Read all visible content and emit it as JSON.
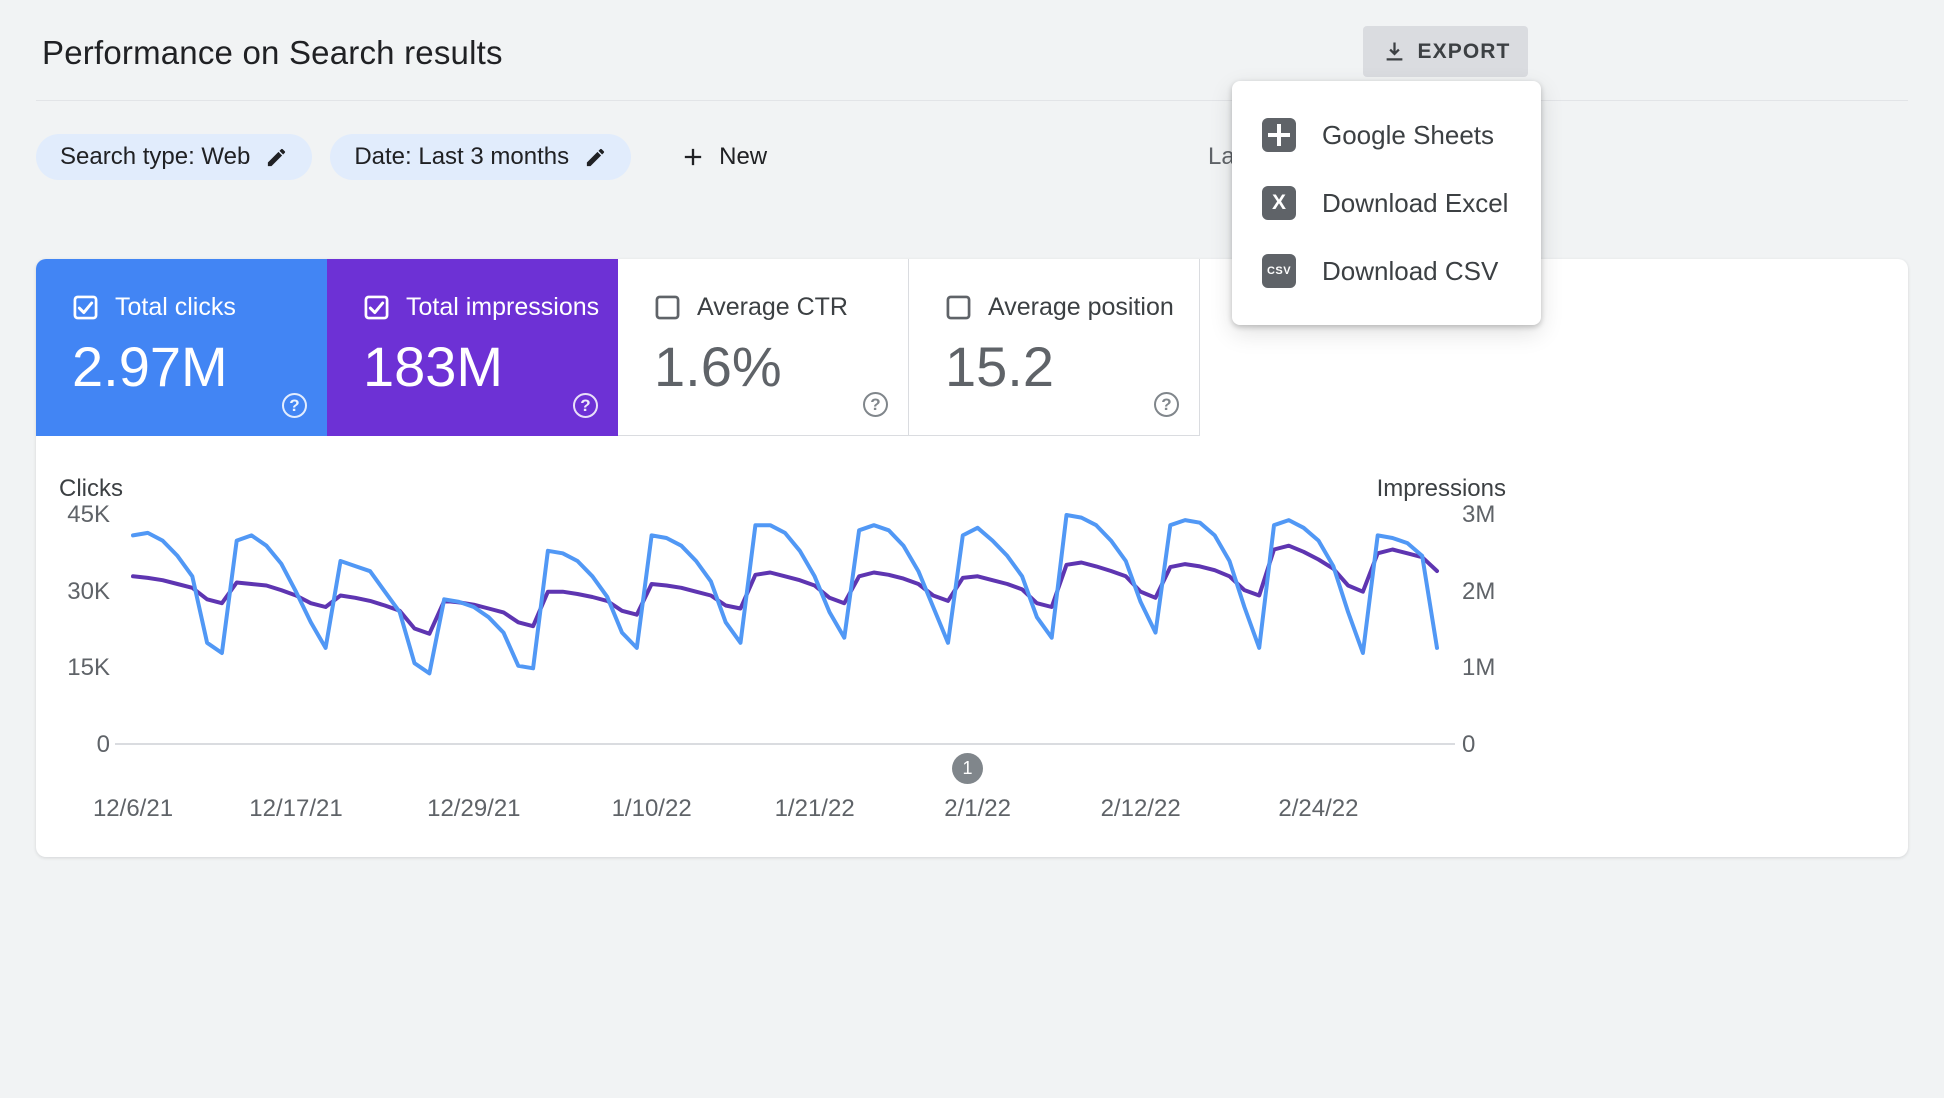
{
  "header": {
    "title": "Performance on Search results",
    "export_label": "EXPORT",
    "last_updated_partial": "La"
  },
  "filters": {
    "search_type": "Search type: Web",
    "date_range": "Date: Last 3 months",
    "new_label": "New"
  },
  "export_menu": {
    "items": [
      {
        "label": "Google Sheets"
      },
      {
        "label": "Download Excel"
      },
      {
        "label": "Download CSV"
      }
    ]
  },
  "metrics": [
    {
      "label": "Total clicks",
      "value": "2.97M",
      "checked": true,
      "color": "#4285f4"
    },
    {
      "label": "Total impressions",
      "value": "183M",
      "checked": true,
      "color": "#6d31d5"
    },
    {
      "label": "Average CTR",
      "value": "1.6%",
      "checked": false,
      "color": ""
    },
    {
      "label": "Average position",
      "value": "15.2",
      "checked": false,
      "color": ""
    }
  ],
  "pager": {
    "page": "1"
  },
  "chart_data": {
    "type": "line",
    "title": "",
    "grid": false,
    "legend_position": "none",
    "left_axis": {
      "label": "Clicks",
      "ticks": [
        "45K",
        "30K",
        "15K",
        "0"
      ],
      "min": 0,
      "max": 45,
      "unit": "K"
    },
    "right_axis": {
      "label": "Impressions",
      "ticks": [
        "3M",
        "2M",
        "1M",
        "0"
      ],
      "min": 0,
      "max": 3,
      "unit": "M"
    },
    "x_tick_labels": [
      {
        "label": "12/6/21",
        "index": 0
      },
      {
        "label": "12/17/21",
        "index": 11
      },
      {
        "label": "12/29/21",
        "index": 23
      },
      {
        "label": "1/10/22",
        "index": 35
      },
      {
        "label": "1/21/22",
        "index": 46
      },
      {
        "label": "2/1/22",
        "index": 57
      },
      {
        "label": "2/12/22",
        "index": 68
      },
      {
        "label": "2/24/22",
        "index": 80
      }
    ],
    "series": [
      {
        "name": "Total clicks",
        "axis": "left",
        "unit": "K",
        "color": "#5198f5",
        "values": [
          41,
          41.5,
          40,
          37,
          33,
          20,
          18,
          40,
          41,
          39,
          35.5,
          30,
          24,
          19,
          36,
          35,
          34,
          30,
          26,
          16,
          14,
          28.5,
          28,
          27,
          25,
          22,
          15.5,
          15,
          38,
          37.5,
          36,
          33,
          29,
          22,
          19,
          41,
          40.5,
          39,
          36,
          32,
          24,
          20,
          43,
          43,
          41.5,
          38,
          33,
          26,
          21,
          42,
          43,
          42,
          39,
          34,
          27,
          20,
          41,
          42.5,
          40,
          37,
          33,
          25,
          21,
          45,
          44.5,
          43,
          40,
          36,
          28,
          22,
          43,
          44,
          43.5,
          41,
          36,
          27,
          19,
          43,
          44,
          42.5,
          40,
          35,
          26,
          18,
          41,
          40.5,
          39.5,
          37,
          19
        ]
      },
      {
        "name": "Total impressions",
        "axis": "right",
        "unit": "M",
        "color": "#5e35b1",
        "values": [
          2.2,
          2.18,
          2.15,
          2.1,
          2.05,
          1.9,
          1.85,
          2.12,
          2.1,
          2.08,
          2.02,
          1.95,
          1.85,
          1.8,
          1.95,
          1.92,
          1.88,
          1.82,
          1.75,
          1.52,
          1.45,
          1.88,
          1.86,
          1.83,
          1.78,
          1.73,
          1.6,
          1.55,
          2.0,
          2.0,
          1.97,
          1.93,
          1.88,
          1.75,
          1.7,
          2.1,
          2.08,
          2.05,
          2.0,
          1.95,
          1.82,
          1.78,
          2.22,
          2.25,
          2.2,
          2.15,
          2.08,
          1.92,
          1.85,
          2.2,
          2.25,
          2.22,
          2.17,
          2.1,
          1.95,
          1.88,
          2.18,
          2.2,
          2.15,
          2.1,
          2.03,
          1.85,
          1.8,
          2.35,
          2.38,
          2.33,
          2.27,
          2.2,
          2.0,
          1.92,
          2.32,
          2.36,
          2.33,
          2.28,
          2.2,
          2.02,
          1.95,
          2.55,
          2.6,
          2.52,
          2.42,
          2.3,
          2.08,
          2.0,
          2.5,
          2.55,
          2.5,
          2.45,
          2.27
        ]
      }
    ]
  }
}
